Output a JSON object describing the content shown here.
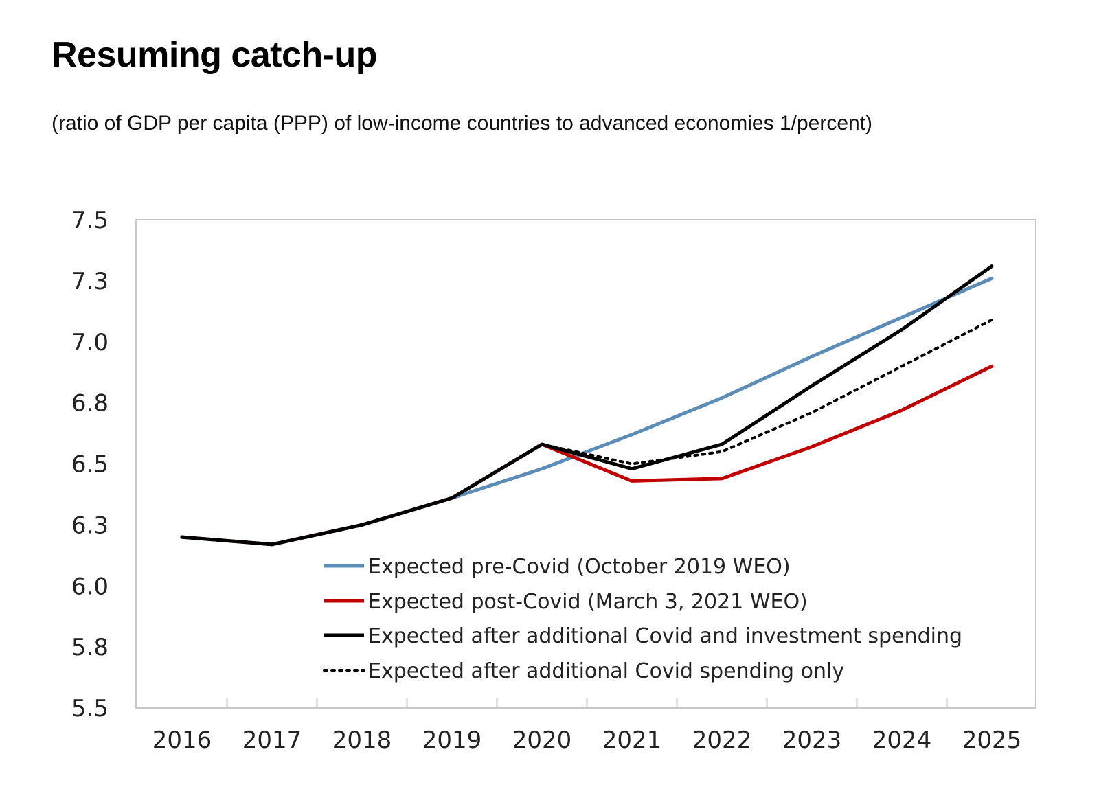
{
  "title": "Resuming catch-up",
  "subtitle": "(ratio of GDP per capita (PPP) of low-income countries to advanced economies 1/percent)",
  "chart_data": {
    "type": "line",
    "x": [
      2016,
      2017,
      2018,
      2019,
      2020,
      2021,
      2022,
      2023,
      2024,
      2025
    ],
    "ylim": [
      5.5,
      7.5
    ],
    "y_tick_values": [
      5.5,
      5.75,
      6.0,
      6.25,
      6.5,
      6.75,
      7.0,
      7.25,
      7.5
    ],
    "y_tick_labels": [
      "5.5",
      "5.8",
      "6.0",
      "6.3",
      "6.5",
      "6.8",
      "7.0",
      "7.3",
      "7.5"
    ],
    "x_tick_labels": [
      "2016",
      "2017",
      "2018",
      "2019",
      "2020",
      "2021",
      "2022",
      "2023",
      "2024",
      "2025"
    ],
    "grid": false,
    "legend_position": "bottom-right",
    "series": [
      {
        "name": "Expected pre-Covid (October 2019 WEO)",
        "color": "#5b8db8",
        "style": "solid",
        "x": [
          2016,
          2017,
          2018,
          2019,
          2020,
          2021,
          2022,
          2023,
          2024,
          2025
        ],
        "values": [
          6.2,
          6.17,
          6.25,
          6.36,
          6.48,
          6.62,
          6.77,
          6.94,
          7.1,
          7.26
        ]
      },
      {
        "name": "Expected post-Covid (March 3, 2021 WEO)",
        "color": "#c00000",
        "style": "solid",
        "x": [
          2016,
          2017,
          2018,
          2019,
          2020,
          2021,
          2022,
          2023,
          2024,
          2025
        ],
        "values": [
          6.2,
          6.17,
          6.25,
          6.36,
          6.58,
          6.43,
          6.44,
          6.57,
          6.72,
          6.9
        ]
      },
      {
        "name": "Expected after additional Covid and investment spending",
        "color": "#000000",
        "style": "solid",
        "x": [
          2016,
          2017,
          2018,
          2019,
          2020,
          2021,
          2022,
          2023,
          2024,
          2025
        ],
        "values": [
          6.2,
          6.17,
          6.25,
          6.36,
          6.58,
          6.48,
          6.58,
          6.82,
          7.05,
          7.31
        ]
      },
      {
        "name": "Expected after additional Covid spending only",
        "color": "#000000",
        "style": "dotted",
        "x": [
          2016,
          2017,
          2018,
          2019,
          2020,
          2021,
          2022,
          2023,
          2024,
          2025
        ],
        "values": [
          6.2,
          6.17,
          6.25,
          6.36,
          6.58,
          6.5,
          6.55,
          6.71,
          6.9,
          7.09
        ]
      }
    ]
  }
}
